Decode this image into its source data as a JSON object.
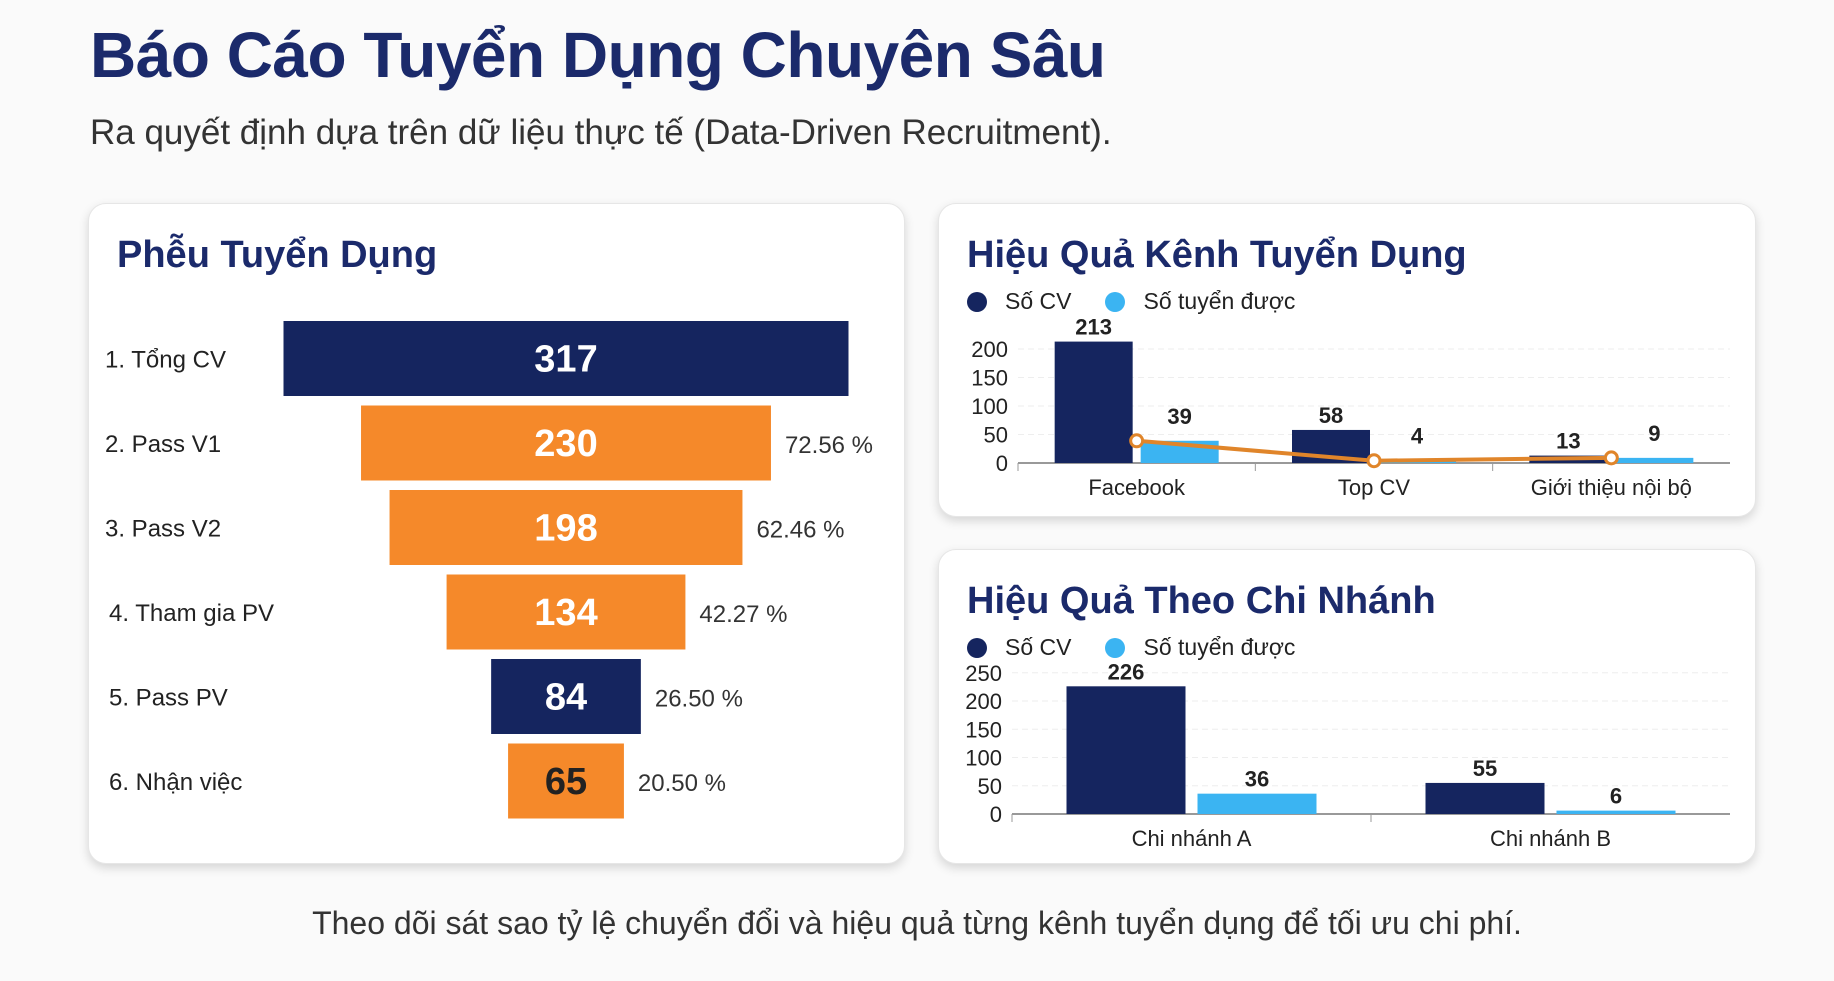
{
  "header": {
    "title": "Báo Cáo Tuyển Dụng Chuyên Sâu",
    "subtitle": "Ra quyết định dựa trên dữ liệu thực tế (Data-Driven Recruitment)."
  },
  "footer": "Theo dõi sát sao tỷ lệ chuyển đổi và hiệu quả từng kênh tuyển dụng để tối ưu chi phí.",
  "colors": {
    "navy": "#15255f",
    "orange": "#f5892a",
    "light": "#3bb4f2",
    "line": "#e0852a"
  },
  "chart_data": [
    {
      "type": "funnel",
      "title": "Phễu Tuyển Dụng",
      "stages": [
        {
          "label": "1. Tổng CV",
          "value": 317,
          "pct": "",
          "color": "navy"
        },
        {
          "label": "2. Pass V1",
          "value": 230,
          "pct": "72.56 %",
          "color": "orange"
        },
        {
          "label": "3. Pass V2",
          "value": 198,
          "pct": "62.46 %",
          "color": "orange"
        },
        {
          "label": "4. Tham gia PV",
          "value": 134,
          "pct": "42.27 %",
          "color": "orange"
        },
        {
          "label": "5. Pass PV",
          "value": 84,
          "pct": "26.50 %",
          "color": "navy"
        },
        {
          "label": "6. Nhận việc",
          "value": 65,
          "pct": "20.50 %",
          "color": "orange"
        }
      ]
    },
    {
      "type": "bar",
      "title": "Hiệu Quả Kênh Tuyển Dụng",
      "categories": [
        "Facebook",
        "Top CV",
        "Giới thiệu nội bộ"
      ],
      "series": [
        {
          "name": "Số CV",
          "values": [
            213,
            58,
            13
          ]
        },
        {
          "name": "Số tuyển được",
          "values": [
            39,
            4,
            9
          ]
        }
      ],
      "line": {
        "values": [
          39,
          4,
          9
        ]
      },
      "yticks": [
        0,
        50,
        100,
        150,
        200
      ],
      "ylim": [
        0,
        220
      ],
      "legend": "top-left"
    },
    {
      "type": "bar",
      "title": "Hiệu Quả Theo Chi Nhánh",
      "categories": [
        "Chi nhánh A",
        "Chi nhánh B"
      ],
      "series": [
        {
          "name": "Số CV",
          "values": [
            226,
            55
          ]
        },
        {
          "name": "Số tuyển được",
          "values": [
            36,
            6
          ]
        }
      ],
      "yticks": [
        0,
        50,
        100,
        150,
        200,
        250
      ],
      "ylim": [
        0,
        260
      ],
      "legend": "top-left"
    }
  ]
}
